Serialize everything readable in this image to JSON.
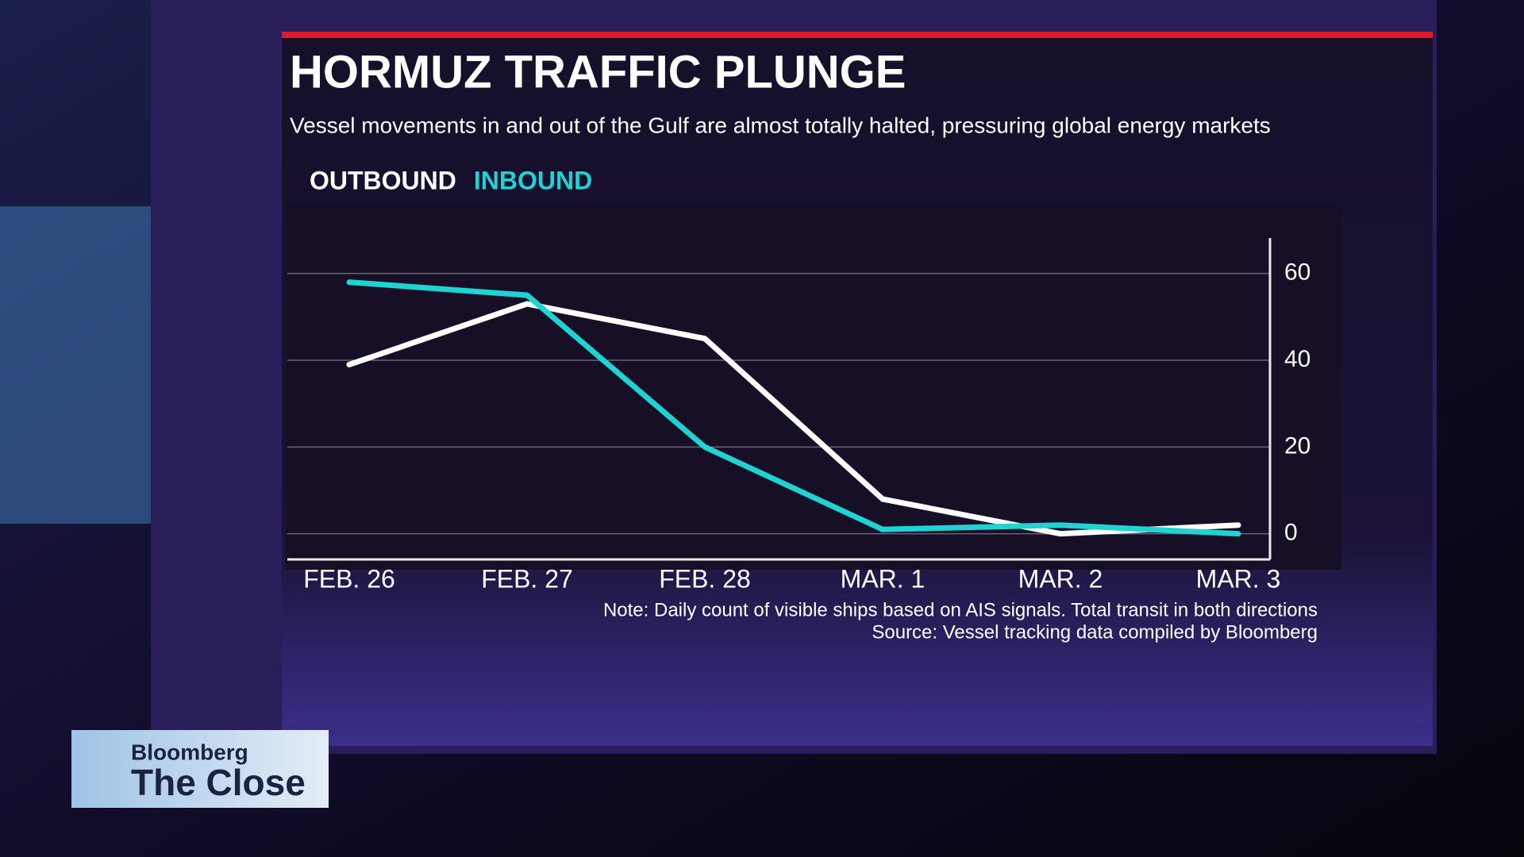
{
  "chart_data": {
    "type": "line",
    "title": "HORMUZ TRAFFIC PLUNGE",
    "subtitle": "Vessel movements in  and out of the Gulf are almost totally halted, pressuring global energy markets",
    "categories": [
      "FEB. 26",
      "FEB. 27",
      "FEB. 28",
      "MAR. 1",
      "MAR. 2",
      "MAR. 3"
    ],
    "series": [
      {
        "name": "OUTBOUND",
        "color": "#ffffff",
        "values": [
          39,
          53,
          45,
          8,
          0,
          2
        ]
      },
      {
        "name": "INBOUND",
        "color": "#1fd3d3",
        "values": [
          58,
          55,
          20,
          1,
          2,
          0
        ]
      }
    ],
    "ylim": [
      -5,
      70
    ],
    "yticks": [
      0,
      20,
      40,
      60
    ],
    "grid": true,
    "notes": [
      "Note: Daily count of visible ships based on AIS signals. Total transit in both directions",
      "Source: Vessel tracking data compiled by Bloomberg"
    ]
  },
  "logo": {
    "brand": "Bloomberg",
    "show": "The Close"
  }
}
